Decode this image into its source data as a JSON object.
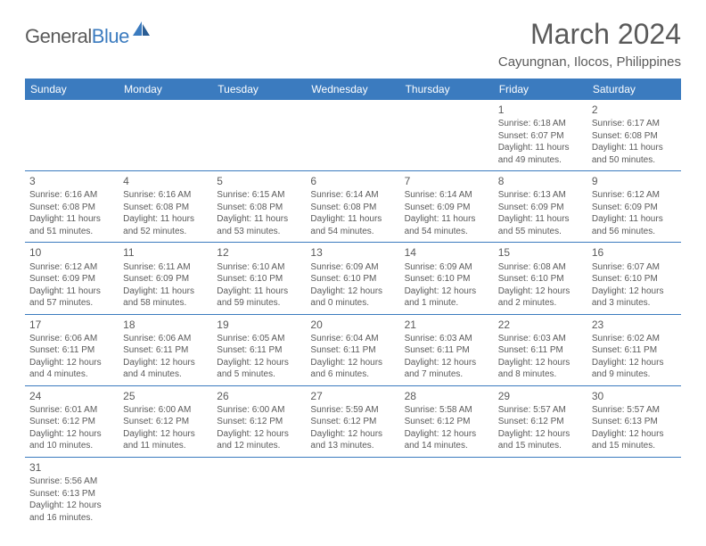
{
  "logo": {
    "part1": "General",
    "part2": "Blue"
  },
  "title": "March 2024",
  "location": "Cayungnan, Ilocos, Philippines",
  "colors": {
    "header_bg": "#3b7bbf",
    "text": "#5a5a5a",
    "blue": "#3b7bbf"
  },
  "weekdays": [
    "Sunday",
    "Monday",
    "Tuesday",
    "Wednesday",
    "Thursday",
    "Friday",
    "Saturday"
  ],
  "weeks": [
    [
      null,
      null,
      null,
      null,
      null,
      {
        "n": "1",
        "sr": "Sunrise: 6:18 AM",
        "ss": "Sunset: 6:07 PM",
        "dl": "Daylight: 11 hours and 49 minutes."
      },
      {
        "n": "2",
        "sr": "Sunrise: 6:17 AM",
        "ss": "Sunset: 6:08 PM",
        "dl": "Daylight: 11 hours and 50 minutes."
      }
    ],
    [
      {
        "n": "3",
        "sr": "Sunrise: 6:16 AM",
        "ss": "Sunset: 6:08 PM",
        "dl": "Daylight: 11 hours and 51 minutes."
      },
      {
        "n": "4",
        "sr": "Sunrise: 6:16 AM",
        "ss": "Sunset: 6:08 PM",
        "dl": "Daylight: 11 hours and 52 minutes."
      },
      {
        "n": "5",
        "sr": "Sunrise: 6:15 AM",
        "ss": "Sunset: 6:08 PM",
        "dl": "Daylight: 11 hours and 53 minutes."
      },
      {
        "n": "6",
        "sr": "Sunrise: 6:14 AM",
        "ss": "Sunset: 6:08 PM",
        "dl": "Daylight: 11 hours and 54 minutes."
      },
      {
        "n": "7",
        "sr": "Sunrise: 6:14 AM",
        "ss": "Sunset: 6:09 PM",
        "dl": "Daylight: 11 hours and 54 minutes."
      },
      {
        "n": "8",
        "sr": "Sunrise: 6:13 AM",
        "ss": "Sunset: 6:09 PM",
        "dl": "Daylight: 11 hours and 55 minutes."
      },
      {
        "n": "9",
        "sr": "Sunrise: 6:12 AM",
        "ss": "Sunset: 6:09 PM",
        "dl": "Daylight: 11 hours and 56 minutes."
      }
    ],
    [
      {
        "n": "10",
        "sr": "Sunrise: 6:12 AM",
        "ss": "Sunset: 6:09 PM",
        "dl": "Daylight: 11 hours and 57 minutes."
      },
      {
        "n": "11",
        "sr": "Sunrise: 6:11 AM",
        "ss": "Sunset: 6:09 PM",
        "dl": "Daylight: 11 hours and 58 minutes."
      },
      {
        "n": "12",
        "sr": "Sunrise: 6:10 AM",
        "ss": "Sunset: 6:10 PM",
        "dl": "Daylight: 11 hours and 59 minutes."
      },
      {
        "n": "13",
        "sr": "Sunrise: 6:09 AM",
        "ss": "Sunset: 6:10 PM",
        "dl": "Daylight: 12 hours and 0 minutes."
      },
      {
        "n": "14",
        "sr": "Sunrise: 6:09 AM",
        "ss": "Sunset: 6:10 PM",
        "dl": "Daylight: 12 hours and 1 minute."
      },
      {
        "n": "15",
        "sr": "Sunrise: 6:08 AM",
        "ss": "Sunset: 6:10 PM",
        "dl": "Daylight: 12 hours and 2 minutes."
      },
      {
        "n": "16",
        "sr": "Sunrise: 6:07 AM",
        "ss": "Sunset: 6:10 PM",
        "dl": "Daylight: 12 hours and 3 minutes."
      }
    ],
    [
      {
        "n": "17",
        "sr": "Sunrise: 6:06 AM",
        "ss": "Sunset: 6:11 PM",
        "dl": "Daylight: 12 hours and 4 minutes."
      },
      {
        "n": "18",
        "sr": "Sunrise: 6:06 AM",
        "ss": "Sunset: 6:11 PM",
        "dl": "Daylight: 12 hours and 4 minutes."
      },
      {
        "n": "19",
        "sr": "Sunrise: 6:05 AM",
        "ss": "Sunset: 6:11 PM",
        "dl": "Daylight: 12 hours and 5 minutes."
      },
      {
        "n": "20",
        "sr": "Sunrise: 6:04 AM",
        "ss": "Sunset: 6:11 PM",
        "dl": "Daylight: 12 hours and 6 minutes."
      },
      {
        "n": "21",
        "sr": "Sunrise: 6:03 AM",
        "ss": "Sunset: 6:11 PM",
        "dl": "Daylight: 12 hours and 7 minutes."
      },
      {
        "n": "22",
        "sr": "Sunrise: 6:03 AM",
        "ss": "Sunset: 6:11 PM",
        "dl": "Daylight: 12 hours and 8 minutes."
      },
      {
        "n": "23",
        "sr": "Sunrise: 6:02 AM",
        "ss": "Sunset: 6:11 PM",
        "dl": "Daylight: 12 hours and 9 minutes."
      }
    ],
    [
      {
        "n": "24",
        "sr": "Sunrise: 6:01 AM",
        "ss": "Sunset: 6:12 PM",
        "dl": "Daylight: 12 hours and 10 minutes."
      },
      {
        "n": "25",
        "sr": "Sunrise: 6:00 AM",
        "ss": "Sunset: 6:12 PM",
        "dl": "Daylight: 12 hours and 11 minutes."
      },
      {
        "n": "26",
        "sr": "Sunrise: 6:00 AM",
        "ss": "Sunset: 6:12 PM",
        "dl": "Daylight: 12 hours and 12 minutes."
      },
      {
        "n": "27",
        "sr": "Sunrise: 5:59 AM",
        "ss": "Sunset: 6:12 PM",
        "dl": "Daylight: 12 hours and 13 minutes."
      },
      {
        "n": "28",
        "sr": "Sunrise: 5:58 AM",
        "ss": "Sunset: 6:12 PM",
        "dl": "Daylight: 12 hours and 14 minutes."
      },
      {
        "n": "29",
        "sr": "Sunrise: 5:57 AM",
        "ss": "Sunset: 6:12 PM",
        "dl": "Daylight: 12 hours and 15 minutes."
      },
      {
        "n": "30",
        "sr": "Sunrise: 5:57 AM",
        "ss": "Sunset: 6:13 PM",
        "dl": "Daylight: 12 hours and 15 minutes."
      }
    ],
    [
      {
        "n": "31",
        "sr": "Sunrise: 5:56 AM",
        "ss": "Sunset: 6:13 PM",
        "dl": "Daylight: 12 hours and 16 minutes."
      },
      null,
      null,
      null,
      null,
      null,
      null
    ]
  ]
}
